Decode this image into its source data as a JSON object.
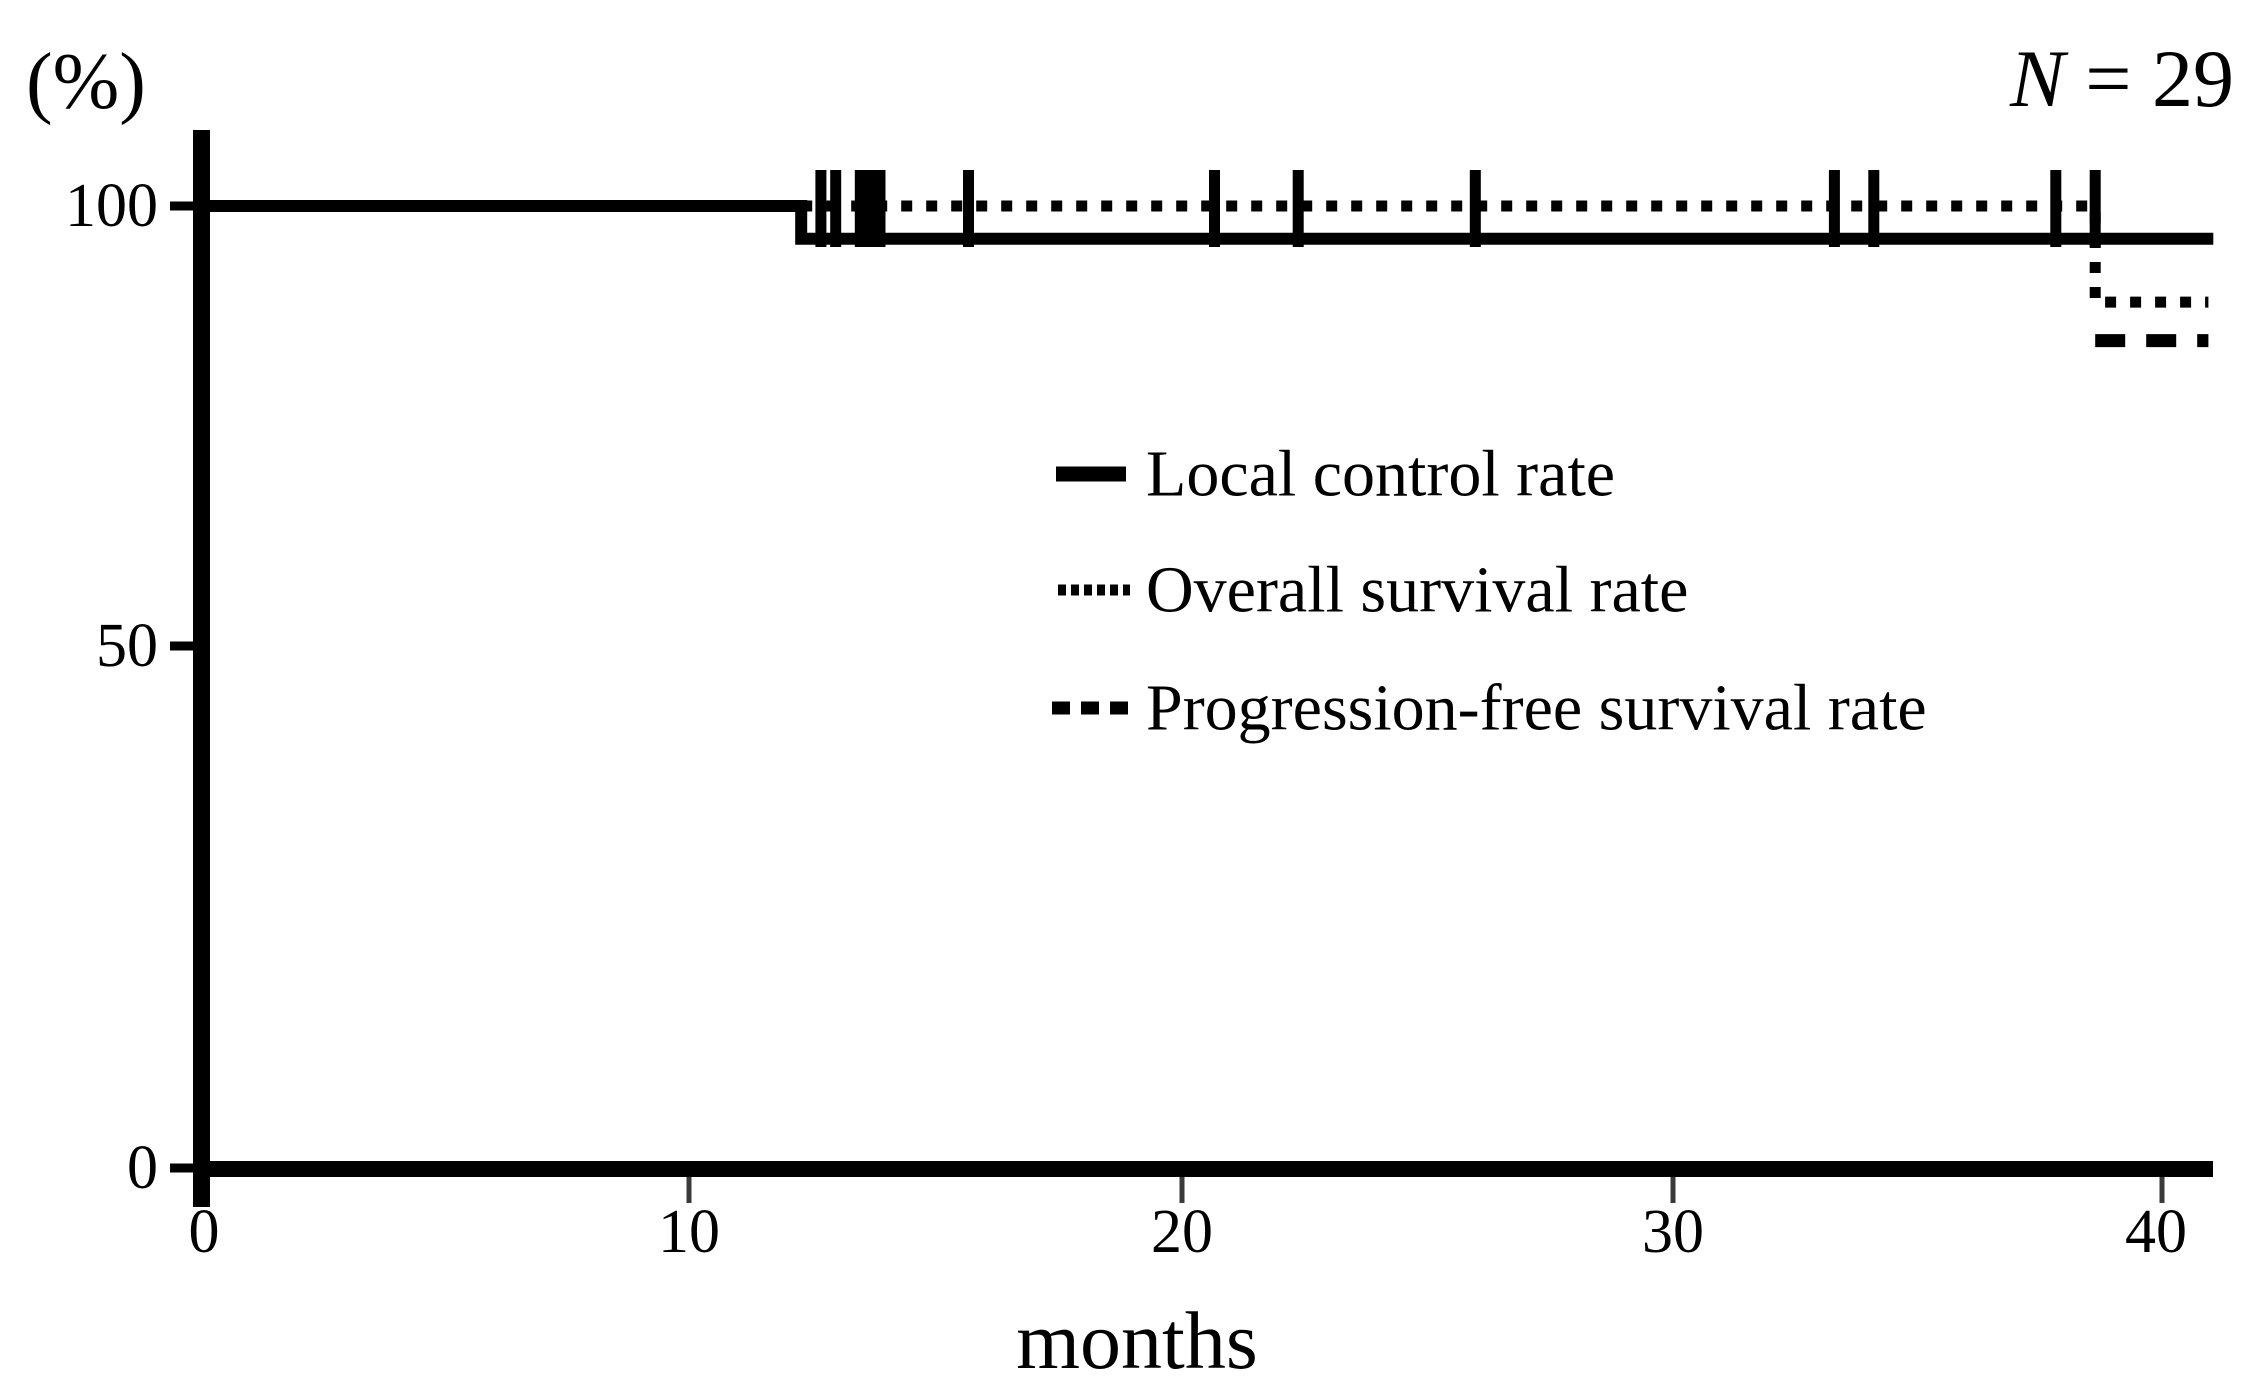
{
  "header": {
    "percent_label": "(%)",
    "n_symbol": "N",
    "n_rest": " = 29"
  },
  "y_axis": {
    "tick_labels": [
      "100",
      "50",
      "0"
    ]
  },
  "x_axis": {
    "tick_labels": [
      "0",
      "10",
      "20",
      "30",
      "40"
    ],
    "axis_label": "months"
  },
  "legend": {
    "items": [
      {
        "label": "Local control rate",
        "style": "solid"
      },
      {
        "label": "Overall survival rate",
        "style": "dotted"
      },
      {
        "label": "Progression-free survival rate",
        "style": "dashed"
      }
    ]
  },
  "chart_data": {
    "type": "line",
    "subtype": "kaplan-meier-step",
    "title": "",
    "xlabel": "months",
    "ylabel": "(%)",
    "annotation": "N = 29",
    "xlim": [
      0,
      41.5
    ],
    "ylim": [
      0,
      100
    ],
    "x_tick_values": [
      0,
      10,
      20,
      30,
      40
    ],
    "y_tick_values": [
      100,
      50,
      0
    ],
    "grid": false,
    "legend_position": "center-right",
    "series": [
      {
        "name": "Local control rate",
        "style": "solid",
        "visible_from_month": 0,
        "steps": [
          [
            0,
            100
          ],
          [
            12.2,
            100
          ],
          [
            12.2,
            96.6
          ],
          [
            40.9,
            96.6
          ]
        ]
      },
      {
        "name": "Overall survival rate",
        "style": "dotted",
        "visible_from_month": 12.2,
        "steps": [
          [
            0,
            100
          ],
          [
            38.5,
            100
          ],
          [
            38.5,
            90
          ],
          [
            40.8,
            90
          ]
        ]
      },
      {
        "name": "Progression-free survival rate",
        "style": "dashed",
        "visible_from_month": 38.5,
        "steps": [
          [
            0,
            100
          ],
          [
            38.5,
            100
          ],
          [
            38.5,
            86
          ],
          [
            40.8,
            86
          ]
        ]
      }
    ],
    "censor_marks_months": [
      12.6,
      12.9,
      13.4,
      13.6,
      13.8,
      15.6,
      20.6,
      22.3,
      25.9,
      33.2,
      34.0,
      37.7,
      38.5
    ]
  }
}
